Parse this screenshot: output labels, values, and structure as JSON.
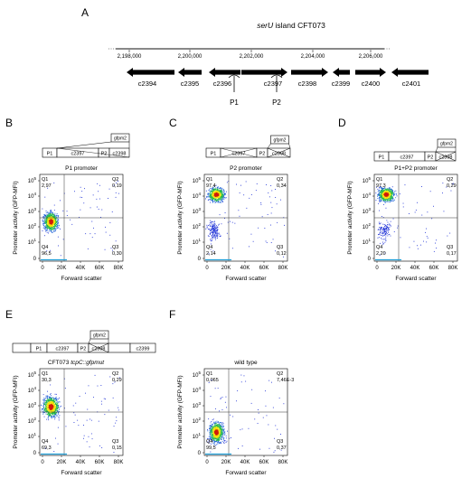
{
  "panel_letters": {
    "A": "A",
    "B": "B",
    "C": "C",
    "D": "D",
    "E": "E",
    "F": "F"
  },
  "map": {
    "title_italic": "serU",
    "title_rest": " island CFT073",
    "ticks": [
      "2,198,000",
      "2,200,000",
      "2,202,000",
      "2,204,000",
      "2,206,000"
    ],
    "genes": [
      {
        "name": "c2394",
        "dir": "left"
      },
      {
        "name": "c2395",
        "dir": "left"
      },
      {
        "name": "c2396",
        "dir": "left"
      },
      {
        "name": "c2397",
        "dir": "right"
      },
      {
        "name": "c2398",
        "dir": "right"
      },
      {
        "name": "c2399",
        "dir": "left"
      },
      {
        "name": "c2400",
        "dir": "right"
      },
      {
        "name": "c2401",
        "dir": "left"
      }
    ],
    "promoters": [
      "P1",
      "P2"
    ]
  },
  "constructs": {
    "B": {
      "segments": [
        "P1",
        "c2397",
        "P2",
        "c2398"
      ],
      "reporter": "gfpm2"
    },
    "C": {
      "segments": [
        "P1",
        "c2397",
        "P2",
        "c2398"
      ],
      "reporter": "gfpm2"
    },
    "D": {
      "segments": [
        "P1",
        "c2397",
        "P2",
        "c2398"
      ],
      "reporter": "gfpm2"
    },
    "E": {
      "segments": [
        "",
        "P1",
        "c2397",
        "P2",
        "c2398",
        "",
        "c2399"
      ],
      "reporter": "gfpm2"
    }
  },
  "plots": {
    "B": {
      "title": "P1 promoter",
      "q1": "2,97",
      "q2": "0,19",
      "q3": "0,30",
      "q4": "96,5"
    },
    "C": {
      "title": "P2 promoter",
      "q1": "97,4",
      "q2": "0,34",
      "q3": "0,12",
      "q4": "2,14"
    },
    "D": {
      "title": "P1+P2 promoter",
      "q1": "97,3",
      "q2": "0,29",
      "q3": "0,17",
      "q4": "2,20"
    },
    "E": {
      "title_pre": "CFT073 ",
      "title_italic": "tcpC::gfpmut",
      "q1": "30,3",
      "q2": "0,29",
      "q3": "0,15",
      "q4": "69,3"
    },
    "F": {
      "title": "wild type",
      "q1": "0,065",
      "q2": "7,46E-3",
      "q3": "0,37",
      "q4": "99,5"
    }
  },
  "axes": {
    "xlabel": "Forward scatter",
    "ylabel": "Promoter activity (GFP-MFI)",
    "xticks": [
      "0",
      "20K",
      "40K",
      "60K",
      "80K"
    ],
    "ytick_base": "10",
    "ytick_exp": [
      "5",
      "4",
      "3",
      "2",
      "1"
    ],
    "ytick_bottom": "0"
  },
  "quadrant_names": {
    "q1": "Q1",
    "q2": "Q2",
    "q3": "Q3",
    "q4": "Q4"
  },
  "colors": {
    "hot": "#d11a0a",
    "warm": "#f2e30c",
    "mid": "#24b84a",
    "cool": "#1a5fd6",
    "dot": "#1c2fd6"
  }
}
